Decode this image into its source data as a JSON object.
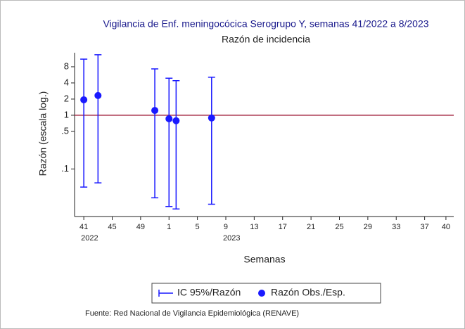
{
  "chart_data": {
    "type": "errorbar",
    "title": "Vigilancia de Enf. meningocócica Serogrupo Y, semanas 41/2022 a 8/2023",
    "subtitle": "Razón de incidencia",
    "xlabel": "Semanas",
    "ylabel": "Razón (escala log.)",
    "x": [
      0,
      2,
      10,
      12,
      13,
      18
    ],
    "series": [
      {
        "name": "Razón Obs./Esp.",
        "color": "#1a1aff",
        "values": [
          1.94,
          2.33,
          1.23,
          0.86,
          0.79,
          0.89
        ]
      }
    ],
    "ci": {
      "name": "IC 95%/Razón",
      "color": "#1a1aff",
      "lower": [
        0.046,
        0.055,
        0.029,
        0.02,
        0.018,
        0.022
      ],
      "upper": [
        11.1,
        13.4,
        7.3,
        4.9,
        4.4,
        5.1
      ]
    },
    "reference_line": {
      "value": 1,
      "color": "#a0203c"
    },
    "ylog": true,
    "ylim": [
      0.013,
      14.6
    ],
    "yticks": [
      {
        "value": 0.1,
        "label": ".1"
      },
      {
        "value": 0.5,
        "label": ".5"
      },
      1,
      2,
      4,
      8
    ],
    "xlim": [
      -1.3,
      52.1
    ],
    "xticks": [
      {
        "value": 0,
        "label": "41"
      },
      {
        "value": 4,
        "label": "45"
      },
      {
        "value": 8,
        "label": "49"
      },
      {
        "value": 12,
        "label": "1"
      },
      {
        "value": 16,
        "label": "5"
      },
      {
        "value": 20,
        "label": "9"
      },
      {
        "value": 24,
        "label": "13"
      },
      {
        "value": 28,
        "label": "17"
      },
      {
        "value": 32,
        "label": "21"
      },
      {
        "value": 36,
        "label": "25"
      },
      {
        "value": 40,
        "label": "29"
      },
      {
        "value": 44,
        "label": "33"
      },
      {
        "value": 48,
        "label": "37"
      },
      {
        "value": 51,
        "label": "40"
      }
    ],
    "year_labels": [
      {
        "value": 0,
        "label": "2022"
      },
      {
        "value": 20,
        "label": "2023"
      }
    ],
    "source": "Fuente: Red Nacional de Vigilancia Epidemiológica (RENAVE)"
  }
}
